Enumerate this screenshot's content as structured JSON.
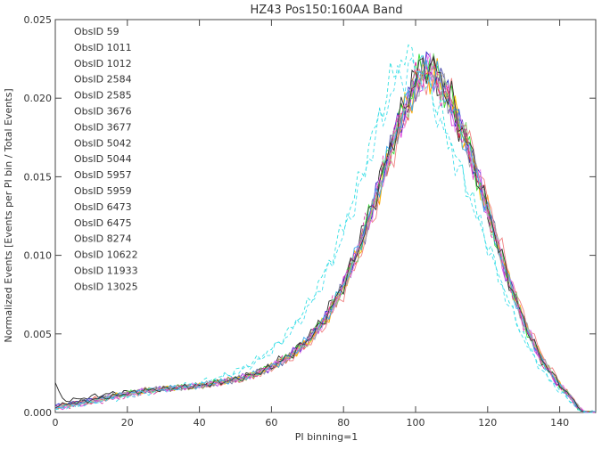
{
  "chart_data": {
    "type": "line",
    "title": "HZ43 Pos150:160AA Band",
    "xlabel": "PI binning=1",
    "ylabel": "Normalized Events [Events per PI bin / Total Events]",
    "xlim": [
      0,
      150
    ],
    "ylim": [
      0.0,
      0.025
    ],
    "xticks": [
      0,
      20,
      40,
      60,
      80,
      100,
      120,
      140
    ],
    "xtick_labels": [
      "0",
      "20",
      "40",
      "60",
      "80",
      "100",
      "120",
      "140"
    ],
    "yticks": [
      0.0,
      0.005,
      0.01,
      0.015,
      0.02,
      0.025
    ],
    "ytick_labels": [
      "0.000",
      "0.005",
      "0.010",
      "0.015",
      "0.020",
      "0.025"
    ],
    "grid": false,
    "legend_position": "top-left",
    "x": [
      0,
      2,
      5,
      10,
      15,
      20,
      25,
      30,
      35,
      40,
      45,
      50,
      55,
      60,
      65,
      70,
      75,
      80,
      85,
      90,
      95,
      100,
      103,
      106,
      110,
      115,
      120,
      125,
      130,
      135,
      140,
      143,
      145,
      147,
      150
    ],
    "series": [
      {
        "name": "ObsID 59",
        "color": "#222222",
        "style": "solid",
        "values": [
          0.0019,
          0.0008,
          0.0008,
          0.001,
          0.0012,
          0.0013,
          0.0014,
          0.0015,
          0.0016,
          0.0017,
          0.0019,
          0.0021,
          0.0025,
          0.003,
          0.0037,
          0.0047,
          0.0062,
          0.0083,
          0.0112,
          0.0147,
          0.0185,
          0.0212,
          0.0219,
          0.0212,
          0.0194,
          0.0165,
          0.0128,
          0.0089,
          0.0057,
          0.0033,
          0.0017,
          0.001,
          0.0003,
          0.0,
          0.0
        ]
      },
      {
        "name": "ObsID 1011",
        "color": "#e040e0",
        "style": "solid",
        "values": [
          0.0002,
          0.0003,
          0.0004,
          0.0006,
          0.0009,
          0.0012,
          0.0014,
          0.0015,
          0.0016,
          0.0017,
          0.0019,
          0.0021,
          0.0024,
          0.0029,
          0.0036,
          0.0046,
          0.006,
          0.0081,
          0.0109,
          0.0144,
          0.0181,
          0.0208,
          0.0216,
          0.021,
          0.0193,
          0.0164,
          0.0127,
          0.0088,
          0.0056,
          0.0032,
          0.0016,
          0.0009,
          0.0003,
          0.0,
          0.0
        ]
      },
      {
        "name": "ObsID 1012",
        "color": "#33e0e0",
        "style": "dashed",
        "values": [
          0.0002,
          0.0003,
          0.0004,
          0.0006,
          0.0009,
          0.0011,
          0.0013,
          0.0015,
          0.0017,
          0.0019,
          0.0022,
          0.0026,
          0.0032,
          0.004,
          0.0052,
          0.0068,
          0.009,
          0.0118,
          0.0152,
          0.019,
          0.0222,
          0.0228,
          0.0215,
          0.0195,
          0.017,
          0.014,
          0.0107,
          0.0075,
          0.0048,
          0.0028,
          0.0014,
          0.0008,
          0.0002,
          0.0,
          0.0
        ]
      },
      {
        "name": "ObsID 2584",
        "color": "#ffd400",
        "style": "solid",
        "values": [
          0.0003,
          0.0004,
          0.0005,
          0.0007,
          0.001,
          0.0012,
          0.0014,
          0.0015,
          0.0016,
          0.0017,
          0.0019,
          0.0021,
          0.0024,
          0.0029,
          0.0036,
          0.0045,
          0.0059,
          0.008,
          0.0108,
          0.0143,
          0.018,
          0.0208,
          0.0218,
          0.0213,
          0.0196,
          0.0166,
          0.0129,
          0.009,
          0.0058,
          0.0034,
          0.0018,
          0.001,
          0.0004,
          0.0,
          0.0
        ]
      },
      {
        "name": "ObsID 2585",
        "color": "#33dd33",
        "style": "solid",
        "values": [
          0.0003,
          0.0004,
          0.0005,
          0.0007,
          0.001,
          0.0012,
          0.0014,
          0.0015,
          0.0016,
          0.0017,
          0.0019,
          0.0021,
          0.0024,
          0.0029,
          0.0036,
          0.0046,
          0.006,
          0.0081,
          0.011,
          0.0146,
          0.0183,
          0.0211,
          0.0222,
          0.0216,
          0.0197,
          0.0166,
          0.0128,
          0.0089,
          0.0057,
          0.0033,
          0.0017,
          0.001,
          0.0003,
          0.0,
          0.0
        ]
      },
      {
        "name": "ObsID 3676",
        "color": "#ee3333",
        "style": "solid",
        "values": [
          0.0004,
          0.0005,
          0.0006,
          0.0008,
          0.001,
          0.0012,
          0.0014,
          0.0015,
          0.0016,
          0.0017,
          0.0019,
          0.0021,
          0.0024,
          0.0029,
          0.0035,
          0.0045,
          0.0059,
          0.008,
          0.0108,
          0.0143,
          0.018,
          0.0209,
          0.0219,
          0.0214,
          0.0197,
          0.0167,
          0.013,
          0.0091,
          0.0058,
          0.0034,
          0.0018,
          0.001,
          0.0004,
          0.0,
          0.0
        ]
      },
      {
        "name": "ObsID 3677",
        "color": "#3333cc",
        "style": "solid",
        "values": [
          0.0004,
          0.0005,
          0.0006,
          0.0008,
          0.001,
          0.0012,
          0.0014,
          0.0015,
          0.0016,
          0.0017,
          0.0019,
          0.0021,
          0.0024,
          0.0029,
          0.0036,
          0.0046,
          0.006,
          0.0081,
          0.0109,
          0.0145,
          0.0182,
          0.021,
          0.022,
          0.0215,
          0.0197,
          0.0167,
          0.0129,
          0.009,
          0.0058,
          0.0033,
          0.0017,
          0.001,
          0.0003,
          0.0,
          0.0
        ]
      },
      {
        "name": "ObsID 5042",
        "color": "#4444aa",
        "style": "solid",
        "values": [
          0.0004,
          0.0005,
          0.0006,
          0.0008,
          0.001,
          0.0012,
          0.0014,
          0.0015,
          0.0016,
          0.0017,
          0.0019,
          0.0021,
          0.0024,
          0.0029,
          0.0035,
          0.0045,
          0.0059,
          0.008,
          0.0108,
          0.0144,
          0.0181,
          0.0209,
          0.0219,
          0.0214,
          0.0197,
          0.0167,
          0.013,
          0.0091,
          0.0058,
          0.0034,
          0.0018,
          0.001,
          0.0004,
          0.0,
          0.0
        ]
      },
      {
        "name": "ObsID 5044",
        "color": "#ffaa00",
        "style": "solid",
        "values": [
          0.0003,
          0.0004,
          0.0005,
          0.0007,
          0.001,
          0.0012,
          0.0014,
          0.0015,
          0.0016,
          0.0017,
          0.0019,
          0.0021,
          0.0024,
          0.0029,
          0.0035,
          0.0044,
          0.0058,
          0.0079,
          0.0107,
          0.0142,
          0.0179,
          0.0207,
          0.0217,
          0.0213,
          0.0196,
          0.0167,
          0.013,
          0.0091,
          0.0059,
          0.0035,
          0.0018,
          0.001,
          0.0004,
          0.0,
          0.0
        ]
      },
      {
        "name": "ObsID 5957",
        "color": "#f08080",
        "style": "solid",
        "values": [
          0.0003,
          0.0004,
          0.0005,
          0.0007,
          0.0009,
          0.0011,
          0.0013,
          0.0015,
          0.0016,
          0.0017,
          0.0018,
          0.002,
          0.0023,
          0.0028,
          0.0034,
          0.0043,
          0.0056,
          0.0076,
          0.0103,
          0.0137,
          0.0174,
          0.0203,
          0.0215,
          0.0214,
          0.02,
          0.0172,
          0.0136,
          0.0096,
          0.0062,
          0.0037,
          0.0019,
          0.0011,
          0.0004,
          0.0,
          0.0
        ]
      },
      {
        "name": "ObsID 5959",
        "color": "#88dd88",
        "style": "solid",
        "values": [
          0.0003,
          0.0004,
          0.0005,
          0.0007,
          0.001,
          0.0012,
          0.0014,
          0.0015,
          0.0016,
          0.0017,
          0.0019,
          0.0021,
          0.0024,
          0.0029,
          0.0036,
          0.0045,
          0.0059,
          0.008,
          0.0108,
          0.0144,
          0.0181,
          0.021,
          0.0221,
          0.0216,
          0.0198,
          0.0167,
          0.0129,
          0.009,
          0.0058,
          0.0034,
          0.0018,
          0.001,
          0.0004,
          0.0,
          0.0
        ]
      },
      {
        "name": "ObsID 6473",
        "color": "#ee88ee",
        "style": "solid",
        "values": [
          0.0003,
          0.0004,
          0.0005,
          0.0007,
          0.001,
          0.0012,
          0.0014,
          0.0015,
          0.0016,
          0.0017,
          0.0019,
          0.0021,
          0.0024,
          0.0029,
          0.0035,
          0.0045,
          0.0059,
          0.008,
          0.0108,
          0.0143,
          0.018,
          0.0208,
          0.0218,
          0.0213,
          0.0196,
          0.0167,
          0.013,
          0.0091,
          0.0058,
          0.0034,
          0.0018,
          0.001,
          0.0004,
          0.0,
          0.0
        ]
      },
      {
        "name": "ObsID 6475",
        "color": "#aaaaaa",
        "style": "solid",
        "values": [
          0.0003,
          0.0004,
          0.0005,
          0.0007,
          0.001,
          0.0012,
          0.0014,
          0.0015,
          0.0016,
          0.0017,
          0.0019,
          0.0021,
          0.0024,
          0.0029,
          0.0035,
          0.0045,
          0.0059,
          0.008,
          0.0108,
          0.0143,
          0.018,
          0.0208,
          0.0218,
          0.0213,
          0.0196,
          0.0166,
          0.0129,
          0.009,
          0.0058,
          0.0034,
          0.0018,
          0.001,
          0.0004,
          0.0,
          0.0
        ]
      },
      {
        "name": "ObsID 8274",
        "color": "#33aaee",
        "style": "solid",
        "values": [
          0.0003,
          0.0004,
          0.0005,
          0.0007,
          0.001,
          0.0012,
          0.0014,
          0.0015,
          0.0016,
          0.0017,
          0.0019,
          0.0021,
          0.0024,
          0.0029,
          0.0036,
          0.0046,
          0.006,
          0.0081,
          0.011,
          0.0145,
          0.0182,
          0.0209,
          0.0218,
          0.0212,
          0.0195,
          0.0165,
          0.0128,
          0.0089,
          0.0057,
          0.0033,
          0.0017,
          0.001,
          0.0003,
          0.0,
          0.0
        ]
      },
      {
        "name": "ObsID 10622",
        "color": "#333333",
        "style": "solid",
        "values": [
          0.0004,
          0.0005,
          0.0006,
          0.0008,
          0.001,
          0.0012,
          0.0014,
          0.0015,
          0.0016,
          0.0017,
          0.0019,
          0.0021,
          0.0024,
          0.0029,
          0.0036,
          0.0046,
          0.006,
          0.0081,
          0.0109,
          0.0145,
          0.0183,
          0.0212,
          0.0223,
          0.0217,
          0.0199,
          0.0168,
          0.013,
          0.0091,
          0.0058,
          0.0034,
          0.0018,
          0.001,
          0.0004,
          0.0,
          0.0
        ]
      },
      {
        "name": "ObsID 11933",
        "color": "#dd33aa",
        "style": "dashed",
        "values": [
          0.0002,
          0.0003,
          0.0004,
          0.0006,
          0.0008,
          0.001,
          0.0012,
          0.0014,
          0.0016,
          0.0017,
          0.0019,
          0.0021,
          0.0024,
          0.0029,
          0.0036,
          0.0046,
          0.0061,
          0.0083,
          0.0112,
          0.0148,
          0.0184,
          0.021,
          0.0218,
          0.0212,
          0.0194,
          0.0164,
          0.0127,
          0.0088,
          0.0056,
          0.0032,
          0.0016,
          0.0009,
          0.0003,
          0.0,
          0.0
        ]
      },
      {
        "name": "ObsID 13025",
        "color": "#44ddee",
        "style": "dashed",
        "values": [
          0.0002,
          0.0003,
          0.0004,
          0.0006,
          0.0008,
          0.001,
          0.0012,
          0.0014,
          0.0016,
          0.0018,
          0.0021,
          0.0025,
          0.0031,
          0.0039,
          0.005,
          0.0065,
          0.0086,
          0.0113,
          0.0146,
          0.0183,
          0.0212,
          0.022,
          0.0208,
          0.019,
          0.0167,
          0.0138,
          0.0106,
          0.0074,
          0.0047,
          0.0027,
          0.0013,
          0.0007,
          0.0002,
          0.0,
          0.0
        ]
      }
    ]
  }
}
